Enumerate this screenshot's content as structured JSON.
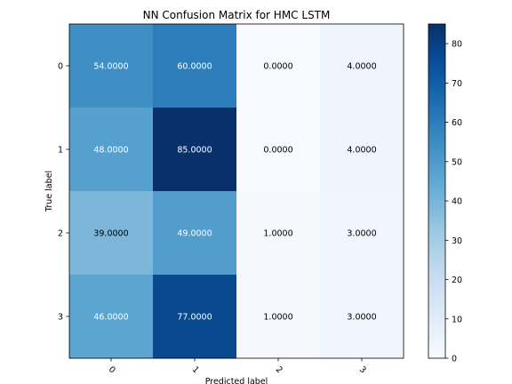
{
  "chart_data": {
    "type": "heatmap",
    "title": "NN Confusion Matrix for HMC LSTM",
    "xlabel": "Predicted label",
    "ylabel": "True label",
    "x_categories": [
      "0",
      "1",
      "2",
      "3"
    ],
    "y_categories": [
      "0",
      "1",
      "2",
      "3"
    ],
    "values": [
      [
        54,
        60,
        0,
        4
      ],
      [
        48,
        85,
        0,
        4
      ],
      [
        39,
        49,
        1,
        3
      ],
      [
        46,
        77,
        1,
        3
      ]
    ],
    "cell_labels": [
      [
        "54.0000",
        "60.0000",
        "0.0000",
        "4.0000"
      ],
      [
        "48.0000",
        "85.0000",
        "0.0000",
        "4.0000"
      ],
      [
        "39.0000",
        "49.0000",
        "1.0000",
        "3.0000"
      ],
      [
        "46.0000",
        "77.0000",
        "1.0000",
        "3.0000"
      ]
    ],
    "colorbar": {
      "min": 0,
      "max": 85,
      "ticks": [
        0,
        10,
        20,
        30,
        40,
        50,
        60,
        70,
        80
      ],
      "tick_labels": [
        "0",
        "10",
        "20",
        "30",
        "40",
        "50",
        "60",
        "70",
        "80"
      ]
    },
    "colormap": "Blues",
    "x_tick_rotation_deg": 45,
    "grid": false,
    "legend": "none"
  }
}
